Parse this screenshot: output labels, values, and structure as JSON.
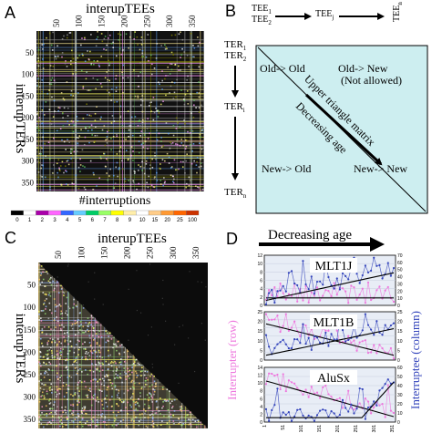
{
  "panels": {
    "A": {
      "letter": "A",
      "top_title": "interupTEEs",
      "side_title": "interupTERs",
      "bottom_title": "#interruptions",
      "col_ticks": [
        "50",
        "100",
        "150",
        "200",
        "250",
        "300",
        "350"
      ],
      "row_ticks": [
        "50",
        "100",
        "150",
        "200",
        "250",
        "300",
        "350"
      ],
      "colorbar_ticks": [
        "0",
        "1",
        "2",
        "3",
        "4",
        "5",
        "6",
        "7",
        "8",
        "9",
        "10",
        "15",
        "20",
        "25",
        "100"
      ],
      "colorbar_colors": [
        "#000000",
        "#ffffff",
        "#aa00aa",
        "#ff66ff",
        "#3366ff",
        "#66ccff",
        "#00cc66",
        "#99ff66",
        "#ffff00",
        "#ffeeaa",
        "#ffffff",
        "#ffcc88",
        "#ff9933",
        "#ff6600",
        "#cc3300"
      ]
    },
    "B": {
      "letter": "B",
      "tee_labels": [
        {
          "main": "TEE",
          "sub": "1"
        },
        {
          "main": "TEE",
          "sub": "2"
        },
        {
          "main": "TEE",
          "sub": "j"
        },
        {
          "main": "TEE",
          "sub": "n"
        }
      ],
      "ter_labels": [
        {
          "main": "TER",
          "sub": "1"
        },
        {
          "main": "TER",
          "sub": "2"
        },
        {
          "main": "TER",
          "sub": "i"
        },
        {
          "main": "TER",
          "sub": "n"
        }
      ],
      "quadrant_old_old": "Old-> Old",
      "quadrant_old_new": "Old-> New",
      "quadrant_not_allowed": "(Not allowed)",
      "quadrant_new_old": "New-> Old",
      "quadrant_new_new": "New-> New",
      "diag_label_1": "Upper triangle matrix",
      "diag_label_2": "Decreasing age",
      "box_color": "#cdeef0"
    },
    "C": {
      "letter": "C",
      "top_title": "interupTEEs",
      "side_title": "interupTERs",
      "col_ticks": [
        "50",
        "100",
        "150",
        "200",
        "250",
        "300",
        "350"
      ],
      "row_ticks": [
        "50",
        "100",
        "150",
        "200",
        "250",
        "300",
        "350"
      ]
    },
    "D": {
      "letter": "D",
      "header": "Decreasing age",
      "left_axis_title": "Interrupter (row)",
      "right_axis_title": "Interruptee (column)",
      "left_color": "#ee77dd",
      "right_color": "#3344bb",
      "x_ticks": [
        "1",
        "51",
        "101",
        "151",
        "201",
        "251",
        "301",
        "351"
      ],
      "subplots": [
        {
          "name": "MLT1J",
          "left_ticks": [
            "0",
            "2",
            "4",
            "6",
            "8",
            "10",
            "12"
          ],
          "right_ticks": [
            "0",
            "10",
            "20",
            "30",
            "40",
            "50",
            "60",
            "70"
          ]
        },
        {
          "name": "MLT1B",
          "left_ticks": [
            "0",
            "5",
            "10",
            "15",
            "20",
            "25"
          ],
          "right_ticks": [
            "0",
            "5",
            "10",
            "15",
            "20",
            "25"
          ]
        },
        {
          "name": "AluSx",
          "left_ticks": [
            "0",
            "2",
            "4",
            "6",
            "8",
            "10",
            "12",
            "14"
          ],
          "right_ticks": [
            "0",
            "10",
            "20",
            "30",
            "40",
            "50",
            "60"
          ]
        }
      ]
    }
  }
}
